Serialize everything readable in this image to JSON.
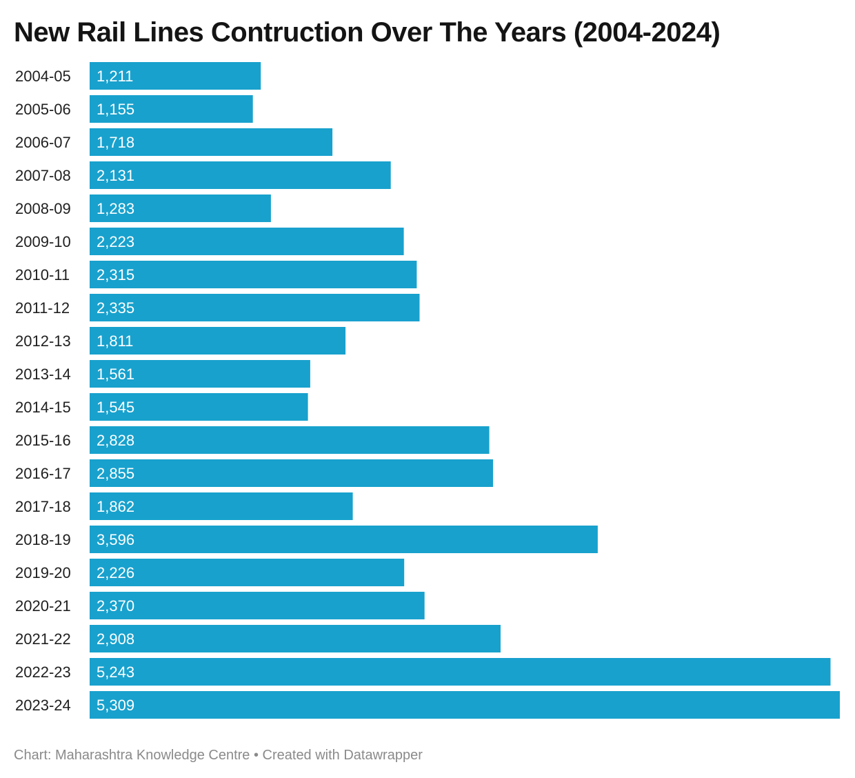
{
  "header": {
    "title": "New Rail Lines Contruction Over The Years (2004-2024)"
  },
  "footer": {
    "source": "Chart: Maharashtra Knowledge Centre",
    "separator": " • ",
    "credit": "Created with Datawrapper"
  },
  "colors": {
    "bar": "#18a1cd",
    "value_label": "#ffffff",
    "category_label": "#1f1f1f"
  },
  "chart_data": {
    "type": "bar",
    "orientation": "horizontal",
    "title": "New Rail Lines Contruction Over The Years (2004-2024)",
    "categories": [
      "2004-05",
      "2005-06",
      "2006-07",
      "2007-08",
      "2008-09",
      "2009-10",
      "2010-11",
      "2011-12",
      "2012-13",
      "2013-14",
      "2014-15",
      "2015-16",
      "2016-17",
      "2017-18",
      "2018-19",
      "2019-20",
      "2020-21",
      "2021-22",
      "2022-23",
      "2023-24"
    ],
    "values": [
      1211,
      1155,
      1718,
      2131,
      1283,
      2223,
      2315,
      2335,
      1811,
      1561,
      1545,
      2828,
      2855,
      1862,
      3596,
      2226,
      2370,
      2908,
      5243,
      5309
    ],
    "value_labels": [
      "1,211",
      "1,155",
      "1,718",
      "2,131",
      "1,283",
      "2,223",
      "2,315",
      "2,335",
      "1,811",
      "1,561",
      "1,545",
      "2,828",
      "2,855",
      "1,862",
      "3,596",
      "2,226",
      "2,370",
      "2,908",
      "5,243",
      "5,309"
    ],
    "xlabel": "",
    "ylabel": "",
    "xlim": [
      0,
      5309
    ],
    "grid": false,
    "legend": "none"
  }
}
